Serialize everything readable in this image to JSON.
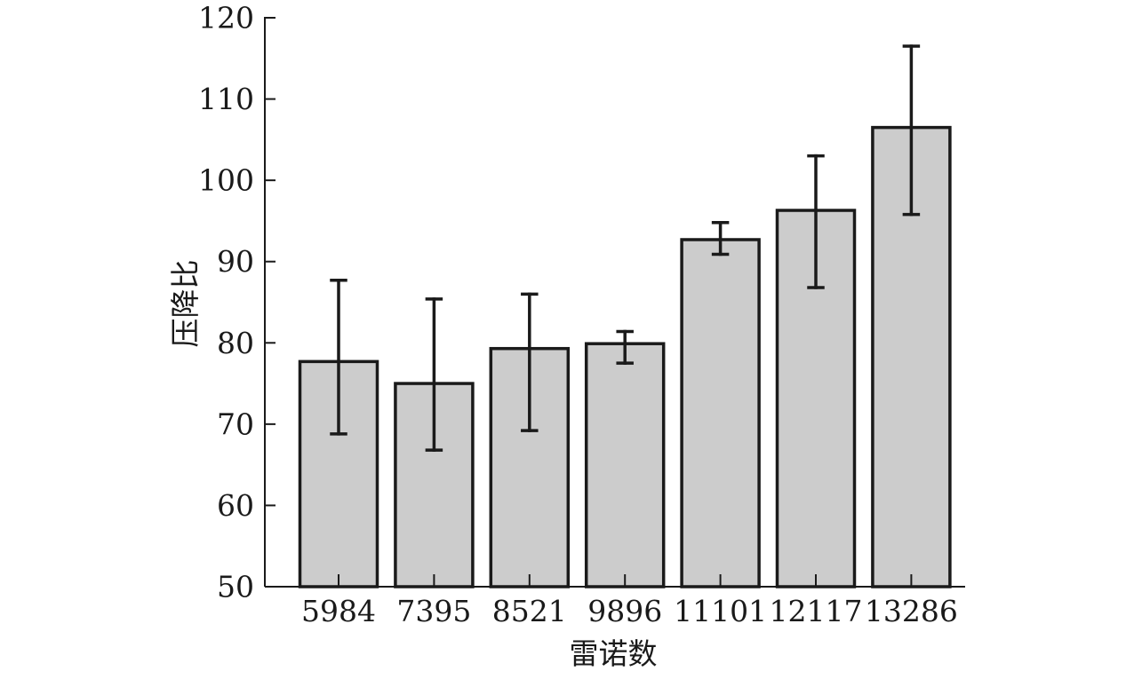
{
  "chart_data": {
    "type": "bar",
    "title": "",
    "xlabel": "雷诺数",
    "ylabel": "压降比",
    "categories": [
      "5984",
      "7395",
      "8521",
      "9896",
      "11101",
      "12117",
      "13286"
    ],
    "values": [
      77.7,
      75.0,
      79.3,
      79.9,
      92.7,
      96.3,
      106.5
    ],
    "error_low": [
      68.8,
      66.8,
      69.2,
      77.5,
      90.9,
      86.8,
      95.8
    ],
    "error_high": [
      87.7,
      85.4,
      86.0,
      81.4,
      94.8,
      103.0,
      116.5
    ],
    "ylim": [
      50,
      120
    ],
    "yticks": [
      50,
      60,
      70,
      80,
      90,
      100,
      110,
      120
    ],
    "grid": false,
    "legend": "none",
    "colors": {
      "bar_fill": "#cccccc",
      "bar_stroke": "#1a1a1a",
      "axis": "#1a1a1a",
      "error_bar": "#1a1a1a"
    }
  }
}
